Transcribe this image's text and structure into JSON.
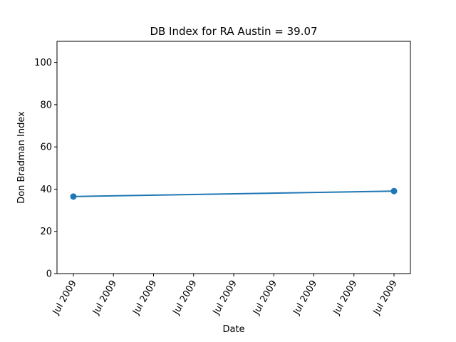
{
  "chart_data": {
    "type": "line",
    "title": "DB Index for RA Austin = 39.07",
    "xlabel": "Date",
    "ylabel": "Don Bradman Index",
    "x_ticks": [
      "Jul 2009",
      "Jul 2009",
      "Jul 2009",
      "Jul 2009",
      "Jul 2009",
      "Jul 2009",
      "Jul 2009",
      "Jul 2009",
      "Jul 2009"
    ],
    "ylim": [
      0,
      110
    ],
    "y_ticks": [
      0,
      20,
      40,
      60,
      80,
      100
    ],
    "grid": false,
    "series": [
      {
        "color": "#1f77b4",
        "marker": "circle",
        "points": [
          {
            "x": "Jul 2009",
            "y": 36.5
          },
          {
            "x": "Jul 2009",
            "y": 39.07
          }
        ]
      }
    ]
  }
}
